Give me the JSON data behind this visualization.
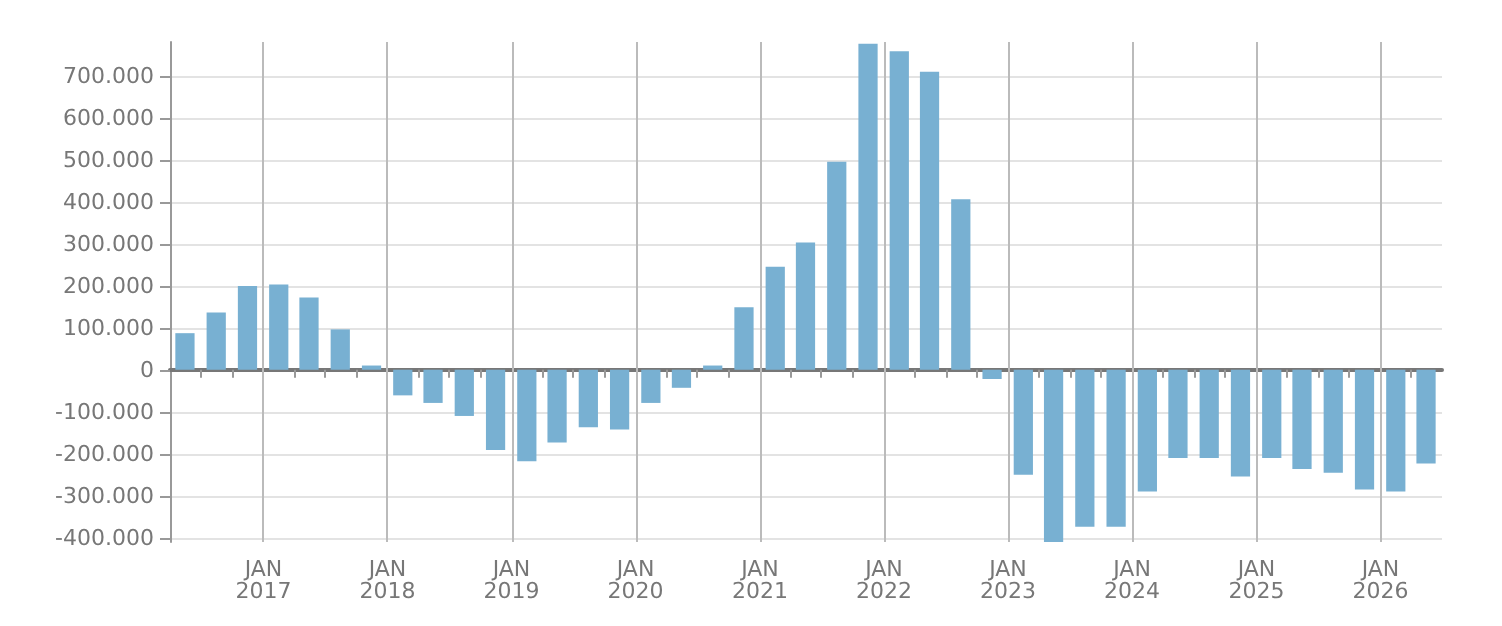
{
  "chart_data": {
    "type": "bar",
    "x": [
      "2016-05-15",
      "2016-08-15",
      "2016-11-15",
      "2017-02-15",
      "2017-05-15",
      "2017-08-15",
      "2017-11-15",
      "2018-02-15",
      "2018-05-15",
      "2018-08-15",
      "2018-11-15",
      "2019-02-15",
      "2019-05-15",
      "2019-08-15",
      "2019-11-15",
      "2020-02-15",
      "2020-05-15",
      "2020-08-15",
      "2020-11-15",
      "2021-02-15",
      "2021-05-15",
      "2021-08-15",
      "2021-11-15",
      "2022-02-15",
      "2022-05-15",
      "2022-08-15",
      "2022-11-15",
      "2023-02-15",
      "2023-05-15",
      "2023-08-15",
      "2023-11-15",
      "2024-02-15",
      "2024-05-15",
      "2024-08-15",
      "2024-11-15",
      "2025-02-15",
      "2025-05-15",
      "2025-08-15",
      "2025-11-15",
      "2026-02-15",
      "2026-05-15"
    ],
    "values": [
      87000,
      136000,
      199000,
      203000,
      172000,
      96000,
      10000,
      -61000,
      -79000,
      -110000,
      -191000,
      -218000,
      -173000,
      -137000,
      -142000,
      -79000,
      -43000,
      10000,
      149000,
      245000,
      303000,
      495000,
      776000,
      758000,
      709000,
      406000,
      -22000,
      -250000,
      -410000,
      -374000,
      -374000,
      -290000,
      -210000,
      -210000,
      -254000,
      -210000,
      -236000,
      -245000,
      -285000,
      -290000,
      -223000
    ],
    "color": "#78b0d2",
    "xlim": [
      "2016-04-01",
      "2026-07-01"
    ],
    "xticks": [
      {
        "value": "2016-07-01",
        "label": null
      },
      {
        "value": "2016-10-01",
        "label": null
      },
      {
        "value": "2017-01-01",
        "label": "JAN\n2017"
      },
      {
        "value": "2017-04-01",
        "label": null
      },
      {
        "value": "2017-07-01",
        "label": null
      },
      {
        "value": "2017-10-01",
        "label": null
      },
      {
        "value": "2018-01-01",
        "label": "JAN\n2018"
      },
      {
        "value": "2018-04-01",
        "label": null
      },
      {
        "value": "2018-07-01",
        "label": null
      },
      {
        "value": "2018-10-01",
        "label": null
      },
      {
        "value": "2019-01-01",
        "label": "JAN\n2019"
      },
      {
        "value": "2019-04-01",
        "label": null
      },
      {
        "value": "2019-07-01",
        "label": null
      },
      {
        "value": "2019-10-01",
        "label": null
      },
      {
        "value": "2020-01-01",
        "label": "JAN\n2020"
      },
      {
        "value": "2020-04-01",
        "label": null
      },
      {
        "value": "2020-07-01",
        "label": null
      },
      {
        "value": "2020-10-01",
        "label": null
      },
      {
        "value": "2021-01-01",
        "label": "JAN\n2021"
      },
      {
        "value": "2021-04-01",
        "label": null
      },
      {
        "value": "2021-07-01",
        "label": null
      },
      {
        "value": "2021-10-01",
        "label": null
      },
      {
        "value": "2022-01-01",
        "label": "JAN\n2022"
      },
      {
        "value": "2022-04-01",
        "label": null
      },
      {
        "value": "2022-07-01",
        "label": null
      },
      {
        "value": "2022-10-01",
        "label": null
      },
      {
        "value": "2023-01-01",
        "label": "JAN\n2023"
      },
      {
        "value": "2023-04-01",
        "label": null
      },
      {
        "value": "2023-07-01",
        "label": null
      },
      {
        "value": "2023-10-01",
        "label": null
      },
      {
        "value": "2024-01-01",
        "label": "JAN\n2024"
      },
      {
        "value": "2024-04-01",
        "label": null
      },
      {
        "value": "2024-07-01",
        "label": null
      },
      {
        "value": "2024-10-01",
        "label": null
      },
      {
        "value": "2025-01-01",
        "label": "JAN\n2025"
      },
      {
        "value": "2025-04-01",
        "label": null
      },
      {
        "value": "2025-07-01",
        "label": null
      },
      {
        "value": "2025-10-01",
        "label": null
      },
      {
        "value": "2026-01-01",
        "label": "JAN\n2026"
      },
      {
        "value": "2026-04-01",
        "label": null
      }
    ],
    "ylim": [
      -410000,
      780000
    ],
    "yticks": [
      {
        "value": -400000,
        "label": "-400.000"
      },
      {
        "value": -300000,
        "label": "-300.000"
      },
      {
        "value": -200000,
        "label": "-200.000"
      },
      {
        "value": -100000,
        "label": "-100.000"
      },
      {
        "value": 0,
        "label": "0"
      },
      {
        "value": 100000,
        "label": "100.000"
      },
      {
        "value": 200000,
        "label": "200.000"
      },
      {
        "value": 300000,
        "label": "300.000"
      },
      {
        "value": 400000,
        "label": "400.000"
      },
      {
        "value": 500000,
        "label": "500.000"
      },
      {
        "value": 600000,
        "label": "600.000"
      },
      {
        "value": 700000,
        "label": "700.000"
      }
    ],
    "grid": true
  }
}
